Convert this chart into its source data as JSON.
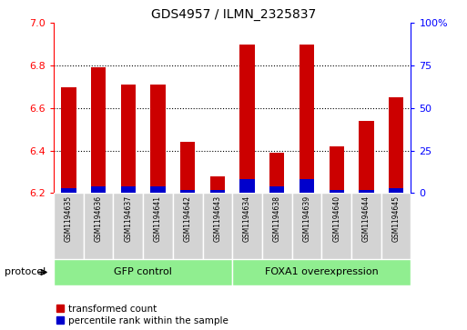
{
  "title": "GDS4957 / ILMN_2325837",
  "samples": [
    "GSM1194635",
    "GSM1194636",
    "GSM1194637",
    "GSM1194641",
    "GSM1194642",
    "GSM1194643",
    "GSM1194634",
    "GSM1194638",
    "GSM1194639",
    "GSM1194640",
    "GSM1194644",
    "GSM1194645"
  ],
  "transformed_count": [
    6.7,
    6.79,
    6.71,
    6.71,
    6.44,
    6.28,
    6.9,
    6.39,
    6.9,
    6.42,
    6.54,
    6.65
  ],
  "percentile_rank": [
    3,
    4,
    4,
    4,
    2,
    2,
    8,
    4,
    8,
    2,
    2,
    3
  ],
  "group1_label": "GFP control",
  "group2_label": "FOXA1 overexpression",
  "group_color": "#90EE90",
  "bar_color_red": "#CC0000",
  "bar_color_blue": "#0000CC",
  "ylim_left": [
    6.2,
    7.0
  ],
  "ylim_right": [
    0,
    100
  ],
  "yticks_left": [
    6.2,
    6.4,
    6.6,
    6.8,
    7.0
  ],
  "yticks_right": [
    0,
    25,
    50,
    75,
    100
  ],
  "grid_values": [
    6.4,
    6.6,
    6.8
  ],
  "bar_width": 0.5,
  "legend_red": "transformed count",
  "legend_blue": "percentile rank within the sample",
  "protocol_label": "protocol"
}
